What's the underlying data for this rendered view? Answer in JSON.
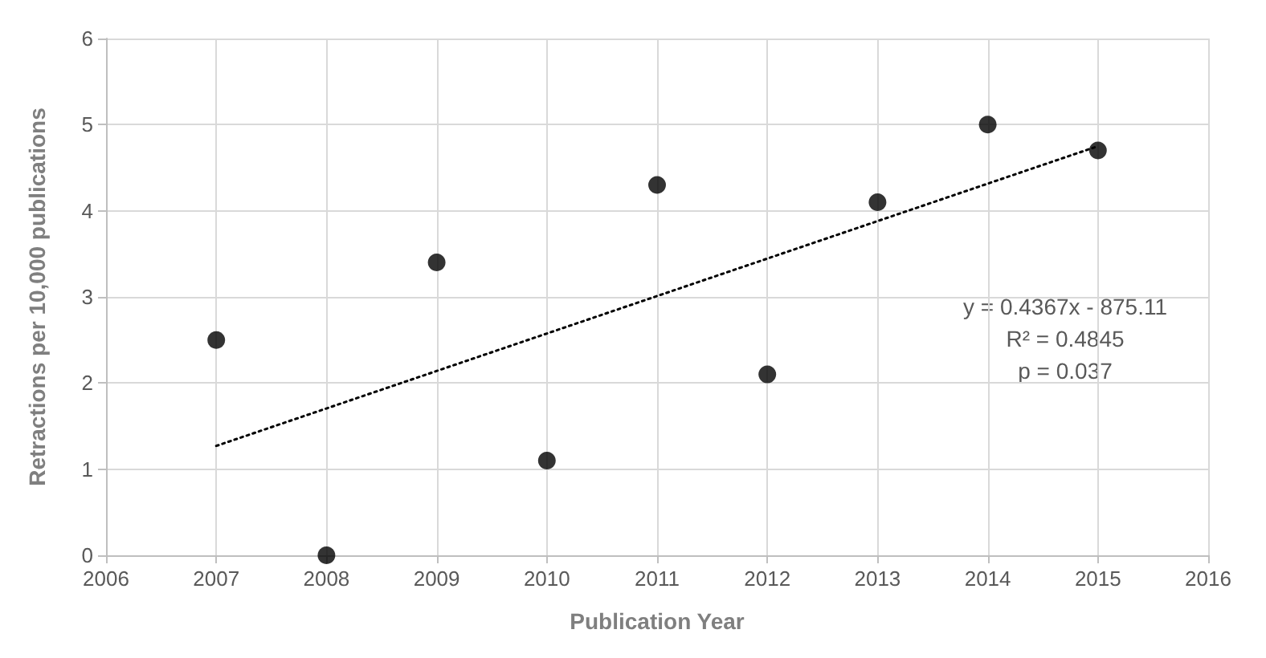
{
  "chart_data": {
    "type": "scatter",
    "xlabel": "Publication Year",
    "ylabel": "Retractions per 10,000 publications",
    "x": [
      2007,
      2008,
      2009,
      2010,
      2011,
      2012,
      2013,
      2014,
      2015
    ],
    "series": [
      {
        "color": "#000000",
        "marker": "circle",
        "values": [
          2.5,
          0,
          3.4,
          1.1,
          4.3,
          2.1,
          4.1,
          5.0,
          4.7
        ]
      },
      {
        "type": "line",
        "color": "#000000",
        "marker": "none",
        "line_style": "dotted",
        "x": [
          2007,
          2015
        ],
        "values": [
          1.27,
          4.75
        ]
      }
    ],
    "xlim": [
      2006,
      2016
    ],
    "xticks": [
      2006,
      2007,
      2008,
      2009,
      2010,
      2011,
      2012,
      2013,
      2014,
      2015,
      2016
    ],
    "ylim": [
      0,
      6
    ],
    "yticks": [
      0,
      1,
      2,
      3,
      4,
      5,
      6
    ],
    "grid": true,
    "annotations": [
      "y = 0.4367x - 875.11",
      "R² = 0.4845",
      "p = 0.037"
    ]
  }
}
